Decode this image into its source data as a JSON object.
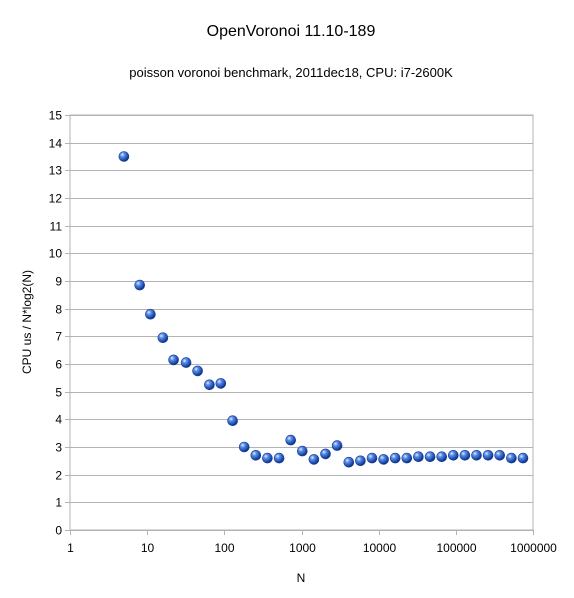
{
  "chart_data": {
    "type": "scatter",
    "title": "OpenVoronoi 11.10-189",
    "subtitle": "poisson voronoi benchmark, 2011dec18, CPU: i7-2600K",
    "xlabel": "N",
    "ylabel": "CPU us / N*log2(N)",
    "x_scale": "log10",
    "xlim": [
      1,
      1000000
    ],
    "ylim": [
      0,
      15
    ],
    "x_ticks": [
      1,
      10,
      100,
      1000,
      10000,
      100000,
      1000000
    ],
    "x_tick_labels": [
      "1",
      "10",
      "100",
      "1000",
      "10000",
      "100000",
      "1000000"
    ],
    "y_ticks": [
      0,
      1,
      2,
      3,
      4,
      5,
      6,
      7,
      8,
      9,
      10,
      11,
      12,
      13,
      14,
      15
    ],
    "y_tick_labels": [
      "0",
      "1",
      "2",
      "3",
      "4",
      "5",
      "6",
      "7",
      "8",
      "9",
      "10",
      "11",
      "12",
      "13",
      "14",
      "15"
    ],
    "grid": "horizontal",
    "legend": "none",
    "marker_color": "#2a5fc4",
    "marker_shape": "shaded-sphere",
    "series": [
      {
        "x": [
          5,
          8,
          11,
          16,
          22,
          32,
          45,
          64,
          90,
          128,
          181,
          256,
          362,
          512,
          724,
          1024,
          1448,
          2048,
          2896,
          4096,
          5793,
          8192,
          11585,
          16384,
          23170,
          32768,
          46341,
          65536,
          92682,
          131072,
          185364,
          262144,
          370728,
          524288,
          741455
        ],
        "y": [
          13.5,
          8.85,
          7.8,
          6.95,
          6.15,
          6.05,
          5.75,
          5.25,
          5.3,
          3.95,
          3.0,
          2.7,
          2.6,
          2.6,
          3.25,
          2.85,
          2.55,
          2.75,
          3.05,
          2.45,
          2.5,
          2.6,
          2.55,
          2.6,
          2.6,
          2.65,
          2.65,
          2.65,
          2.7,
          2.7,
          2.7,
          2.7,
          2.7,
          2.6,
          2.6
        ]
      }
    ]
  }
}
